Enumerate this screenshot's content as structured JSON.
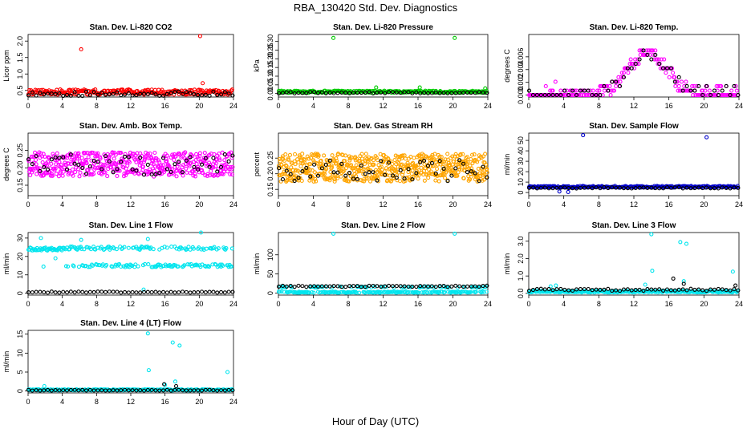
{
  "title": "RBA_130420  Std. Dev. Diagnostics",
  "xlabel": "Hour of Day (UTC)",
  "chart_data": [
    {
      "type": "scatter",
      "title": "Stan. Dev. Li-820 CO2",
      "ylabel": "Licor ppm",
      "xlim": [
        0,
        24
      ],
      "ylim": [
        0.3,
        2.2
      ],
      "xticks": [
        0,
        4,
        8,
        12,
        16,
        20,
        24
      ],
      "xtick_labels": [
        "0",
        "4",
        "8",
        "12",
        "16",
        "20",
        "24"
      ],
      "yticks": [
        0.5,
        1.0,
        1.5,
        2.0
      ],
      "ytick_labels": [
        "0.5",
        "1.0",
        "1.5",
        "2.0"
      ],
      "series": [
        {
          "color": "#ff0000",
          "base": 0.45,
          "spread": 0.08,
          "step": 0.1,
          "points": [
            [
              6.2,
              1.75
            ],
            [
              20.1,
              2.15
            ],
            [
              20.4,
              0.72
            ]
          ]
        },
        {
          "color": "#000000",
          "base": 0.4,
          "spread": 0.07,
          "step": 0.45,
          "points": []
        }
      ]
    },
    {
      "type": "scatter",
      "title": "Stan. Dev. Li-820 Pressure",
      "ylabel": "kPa",
      "xlim": [
        0,
        24
      ],
      "ylim": [
        -0.02,
        0.34
      ],
      "xticks": [
        0,
        4,
        8,
        12,
        16,
        20,
        24
      ],
      "xtick_labels": [
        "0",
        "4",
        "8",
        "12",
        "16",
        "20",
        "24"
      ],
      "yticks": [
        0.0,
        0.05,
        0.1,
        0.15,
        0.2,
        0.25,
        0.3
      ],
      "ytick_labels": [
        "0.00",
        "0.05",
        "0.10",
        "0.15",
        "0.20",
        "0.25",
        "0.30"
      ],
      "series": [
        {
          "color": "#00cc00",
          "base": 0.01,
          "spread": 0.006,
          "step": 0.1,
          "points": [
            [
              6.3,
              0.32
            ],
            [
              20.2,
              0.32
            ],
            [
              11.2,
              0.035
            ],
            [
              16.2,
              0.035
            ],
            [
              23.7,
              0.03
            ]
          ]
        },
        {
          "color": "#000000",
          "base": 0.005,
          "spread": 0.004,
          "step": 0.45,
          "points": []
        }
      ]
    },
    {
      "type": "scatter",
      "title": "Stan. Dev. Li-820 Temp.",
      "ylabel": "degrees C",
      "xlim": [
        0,
        24
      ],
      "ylim": [
        -0.0003,
        0.0095
      ],
      "xticks": [
        0,
        4,
        8,
        12,
        16,
        20,
        24
      ],
      "xtick_labels": [
        "0",
        "4",
        "8",
        "12",
        "16",
        "20",
        "24"
      ],
      "yticks": [
        0.0,
        0.002,
        0.004,
        0.006
      ],
      "ytick_labels": [
        "0.000",
        "0.002",
        "0.004",
        "0.006"
      ],
      "series": [
        {
          "color": "#ff00ff",
          "mode": "temp",
          "step": 0.1,
          "points": []
        },
        {
          "color": "#000000",
          "mode": "temp",
          "step": 0.45,
          "points": []
        }
      ]
    },
    {
      "type": "scatter",
      "title": "Stan. Dev. Amb. Box Temp.",
      "ylabel": "degrees C",
      "xlim": [
        0,
        24
      ],
      "ylim": [
        0.12,
        0.3
      ],
      "xticks": [
        0,
        4,
        8,
        12,
        16,
        20,
        24
      ],
      "xtick_labels": [
        "0",
        "4",
        "8",
        "12",
        "16",
        "20",
        "24"
      ],
      "yticks": [
        0.15,
        0.2,
        0.25
      ],
      "ytick_labels": [
        "0.15",
        "0.20",
        "0.25"
      ],
      "series": [
        {
          "color": "#ff00ff",
          "base": 0.21,
          "spread": 0.035,
          "step": 0.05,
          "points": []
        },
        {
          "color": "#000000",
          "base": 0.21,
          "spread": 0.03,
          "step": 0.45,
          "points": []
        }
      ]
    },
    {
      "type": "scatter",
      "title": "Stan. Dev. Gas Stream RH",
      "ylabel": "percent",
      "xlim": [
        0,
        24
      ],
      "ylim": [
        0.13,
        0.33
      ],
      "xticks": [
        0,
        4,
        8,
        12,
        16,
        20,
        24
      ],
      "xtick_labels": [
        "0",
        "4",
        "8",
        "12",
        "16",
        "20",
        "24"
      ],
      "yticks": [
        0.15,
        0.2,
        0.25
      ],
      "ytick_labels": [
        "0.15",
        "0.20",
        "0.25"
      ],
      "series": [
        {
          "color": "#ffa500",
          "base": 0.22,
          "spread": 0.045,
          "step": 0.04,
          "points": []
        },
        {
          "color": "#000000",
          "base": 0.21,
          "spread": 0.035,
          "step": 0.45,
          "points": []
        }
      ]
    },
    {
      "type": "scatter",
      "title": "Stan. Dev. Sample Flow",
      "ylabel": "ml/min",
      "xlim": [
        0,
        24
      ],
      "ylim": [
        -3,
        57
      ],
      "xticks": [
        0,
        4,
        8,
        12,
        16,
        20,
        24
      ],
      "xtick_labels": [
        "0",
        "4",
        "8",
        "12",
        "16",
        "20",
        "24"
      ],
      "yticks": [
        0,
        10,
        20,
        30,
        40,
        50
      ],
      "ytick_labels": [
        "0",
        "10",
        "20",
        "30",
        "40",
        "50"
      ],
      "series": [
        {
          "color": "#0000cc",
          "base": 5.5,
          "spread": 0.8,
          "step": 0.1,
          "points": [
            [
              6.2,
              55
            ],
            [
              20.3,
              53
            ],
            [
              3.5,
              1
            ],
            [
              4.5,
              0.5
            ]
          ]
        },
        {
          "color": "#000000",
          "base": 4.5,
          "spread": 0.6,
          "step": 0.45,
          "points": []
        }
      ]
    },
    {
      "type": "scatter",
      "title": "Stan. Dev. Line 1 Flow",
      "ylabel": "ml/min",
      "xlim": [
        0,
        24
      ],
      "ylim": [
        -1,
        33
      ],
      "xticks": [
        0,
        4,
        8,
        12,
        16,
        20,
        24
      ],
      "xtick_labels": [
        "0",
        "4",
        "8",
        "12",
        "16",
        "20",
        "24"
      ],
      "yticks": [
        0,
        10,
        20,
        30
      ],
      "ytick_labels": [
        "0",
        "10",
        "20",
        "30"
      ],
      "series": [
        {
          "color": "#00e5ee",
          "mode": "line1",
          "step": 0.1,
          "points": [
            [
              1.5,
              30
            ],
            [
              3.2,
              19
            ],
            [
              6.2,
              29
            ],
            [
              14,
              29.5
            ],
            [
              20.2,
              33
            ],
            [
              1.8,
              14.5
            ],
            [
              13.5,
              2
            ]
          ]
        },
        {
          "color": "#000000",
          "base": 0.6,
          "spread": 0.3,
          "step": 0.45,
          "points": []
        }
      ]
    },
    {
      "type": "scatter",
      "title": "Stan. Dev. Line 2 Flow",
      "ylabel": "ml/min",
      "xlim": [
        0,
        24
      ],
      "ylim": [
        -5,
        158
      ],
      "xticks": [
        0,
        4,
        8,
        12,
        16,
        20,
        24
      ],
      "xtick_labels": [
        "0",
        "4",
        "8",
        "12",
        "16",
        "20",
        "24"
      ],
      "yticks": [
        0,
        50,
        100
      ],
      "ytick_labels": [
        "0",
        "50",
        "100"
      ],
      "series": [
        {
          "color": "#00e5ee",
          "mode": "line2",
          "step": 0.1,
          "points": [
            [
              6.3,
              155
            ],
            [
              20.2,
              155
            ]
          ]
        },
        {
          "color": "#000000",
          "base": 18,
          "spread": 1.5,
          "step": 0.45,
          "points": []
        }
      ]
    },
    {
      "type": "scatter",
      "title": "Stan. Dev. Line 3 Flow",
      "ylabel": "ml/min",
      "xlim": [
        0,
        24
      ],
      "ylim": [
        -0.1,
        3.5
      ],
      "xticks": [
        0,
        4,
        8,
        12,
        16,
        20,
        24
      ],
      "xtick_labels": [
        "0",
        "4",
        "8",
        "12",
        "16",
        "20",
        "24"
      ],
      "yticks": [
        0.0,
        1.0,
        2.0,
        3.0
      ],
      "ytick_labels": [
        "0.0",
        "1.0",
        "2.0",
        "3.0"
      ],
      "series": [
        {
          "color": "#00e5ee",
          "base": 0.1,
          "spread": 0.05,
          "step": 0.1,
          "points": [
            [
              14,
              3.4
            ],
            [
              17.3,
              2.95
            ],
            [
              18,
              2.85
            ],
            [
              14.1,
              1.3
            ],
            [
              23.3,
              1.25
            ],
            [
              17.7,
              0.7
            ],
            [
              13.3,
              0.5
            ],
            [
              3.1,
              0.45
            ],
            [
              2.5,
              0.4
            ]
          ]
        },
        {
          "color": "#000000",
          "base": 0.2,
          "spread": 0.06,
          "step": 0.45,
          "points": [
            [
              16.5,
              0.85
            ],
            [
              17.7,
              0.55
            ],
            [
              23.6,
              0.45
            ]
          ]
        }
      ]
    },
    {
      "type": "scatter",
      "title": "Stan. Dev. Line 4 (LT) Flow",
      "ylabel": "ml/min",
      "xlim": [
        0,
        24
      ],
      "ylim": [
        -0.5,
        16
      ],
      "xticks": [
        0,
        4,
        8,
        12,
        16,
        20,
        24
      ],
      "xtick_labels": [
        "0",
        "4",
        "8",
        "12",
        "16",
        "20",
        "24"
      ],
      "yticks": [
        0,
        5,
        10,
        15
      ],
      "ytick_labels": [
        "0",
        "5",
        "10",
        "15"
      ],
      "series": [
        {
          "color": "#00e5ee",
          "base": 0.3,
          "spread": 0.15,
          "step": 0.1,
          "points": [
            [
              14,
              15.2
            ],
            [
              16.9,
              12.8
            ],
            [
              17.7,
              12
            ],
            [
              14.1,
              5.5
            ],
            [
              23.3,
              5
            ],
            [
              1.9,
              1.3
            ],
            [
              17.2,
              2.5
            ],
            [
              16,
              1.6
            ]
          ]
        },
        {
          "color": "#000000",
          "base": 0.2,
          "spread": 0.1,
          "step": 0.45,
          "points": [
            [
              15.9,
              1.8
            ],
            [
              17.3,
              1.3
            ]
          ]
        }
      ]
    }
  ]
}
